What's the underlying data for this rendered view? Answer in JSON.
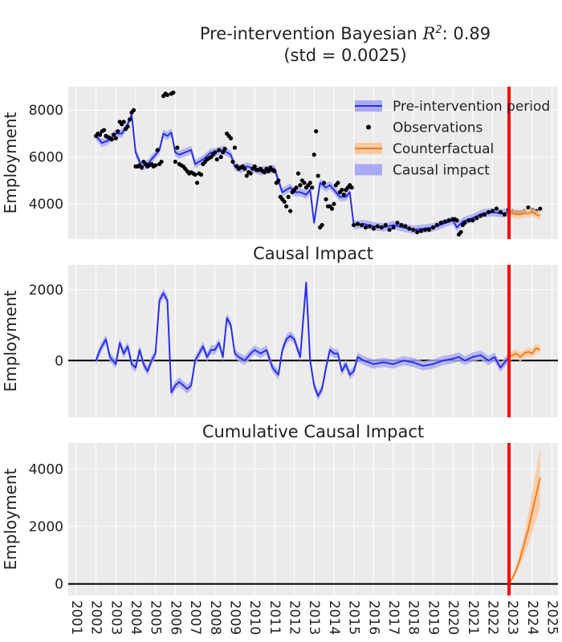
{
  "figure": {
    "title_line1_prefix": "Pre-intervention Bayesian ",
    "title_r2_symbol": "R",
    "title_r2_power": "2",
    "title_line1_suffix": ": 0.89",
    "title_line2": "(std = 0.0025)"
  },
  "colors": {
    "panel_bg": "#ebebeb",
    "grid": "#ffffff",
    "pre_line": "#2a2eec",
    "pre_band": "#a9aaf3",
    "counterfactual": "#fa7c17",
    "counterfactual_band": "#f8c9a3",
    "observations": "#000000",
    "intervention_line": "#ff0000",
    "zero_line": "#000000"
  },
  "chart_data": [
    {
      "type": "line",
      "title": "",
      "ylabel": "Employment",
      "xlim": [
        2000.6,
        2025.3
      ],
      "ylim": [
        2500,
        9000
      ],
      "yticks": [
        4000,
        6000,
        8000
      ],
      "grid": true,
      "intervention_x": 2022.83,
      "legend": {
        "position": "top-right",
        "entries": [
          "Pre-intervention period",
          "Observations",
          "Counterfactual",
          "Causal impact"
        ]
      },
      "series": [
        {
          "name": "Pre-intervention period",
          "x": [
            2002.0,
            2002.3,
            2002.6,
            2003.0,
            2003.3,
            2003.6,
            2003.8,
            2004.0,
            2004.3,
            2004.6,
            2005.0,
            2005.2,
            2005.4,
            2005.6,
            2005.8,
            2006.0,
            2006.2,
            2006.5,
            2006.8,
            2007.0,
            2007.4,
            2007.8,
            2008.0,
            2008.4,
            2008.8,
            2009.0,
            2009.3,
            2009.6,
            2010.0,
            2010.3,
            2010.6,
            2011.0,
            2011.4,
            2011.6,
            2011.8,
            2012.0,
            2012.3,
            2012.6,
            2012.8,
            2013.0,
            2013.3,
            2013.6,
            2013.8,
            2014.0,
            2014.3,
            2014.6,
            2014.8,
            2015.0,
            2015.5,
            2016.0,
            2016.5,
            2017.0,
            2017.5,
            2018.0,
            2018.5,
            2019.0,
            2019.5,
            2020.0,
            2020.2,
            2020.5,
            2021.0,
            2021.5,
            2022.0,
            2022.5,
            2022.83
          ],
          "y": [
            6900,
            6600,
            6700,
            7000,
            7000,
            7400,
            7800,
            6200,
            5600,
            5700,
            6100,
            6300,
            7000,
            6900,
            7050,
            6200,
            6100,
            6200,
            6300,
            5700,
            5900,
            6200,
            6200,
            6300,
            6100,
            5600,
            5500,
            5600,
            5500,
            5400,
            5450,
            5500,
            4500,
            4600,
            4700,
            4500,
            4500,
            4400,
            4600,
            3200,
            4900,
            4700,
            4800,
            4600,
            4300,
            4300,
            4500,
            3100,
            3150,
            3050,
            3000,
            3100,
            3000,
            2900,
            2950,
            3000,
            3150,
            3300,
            3000,
            3250,
            3400,
            3600,
            3650,
            3600,
            3650
          ]
        },
        {
          "name": "Observations",
          "x": [
            2002.0,
            2002.1,
            2002.2,
            2002.3,
            2002.4,
            2002.5,
            2002.6,
            2002.7,
            2002.8,
            2002.9,
            2003.0,
            2003.1,
            2003.2,
            2003.3,
            2003.4,
            2003.5,
            2003.6,
            2003.7,
            2003.8,
            2003.9,
            2004.0,
            2004.1,
            2004.2,
            2004.3,
            2004.4,
            2004.5,
            2004.6,
            2004.7,
            2004.8,
            2004.9,
            2005.0,
            2005.1,
            2005.2,
            2005.3,
            2005.4,
            2005.5,
            2005.6,
            2005.8,
            2005.9,
            2006.0,
            2006.1,
            2006.2,
            2006.3,
            2006.4,
            2006.5,
            2006.6,
            2006.7,
            2006.8,
            2006.9,
            2007.0,
            2007.1,
            2007.2,
            2007.3,
            2007.4,
            2007.5,
            2007.6,
            2007.7,
            2007.8,
            2007.9,
            2008.0,
            2008.1,
            2008.2,
            2008.3,
            2008.4,
            2008.5,
            2008.6,
            2008.7,
            2008.8,
            2008.9,
            2009.0,
            2009.1,
            2009.2,
            2009.3,
            2009.4,
            2009.5,
            2009.6,
            2009.7,
            2009.8,
            2009.9,
            2010.0,
            2010.1,
            2010.2,
            2010.3,
            2010.4,
            2010.5,
            2010.6,
            2010.7,
            2010.8,
            2010.9,
            2011.0,
            2011.1,
            2011.2,
            2011.3,
            2011.4,
            2011.5,
            2011.6,
            2011.7,
            2011.8,
            2011.9,
            2012.0,
            2012.1,
            2012.2,
            2012.3,
            2012.4,
            2012.5,
            2012.6,
            2012.7,
            2012.8,
            2012.9,
            2013.0,
            2013.1,
            2013.2,
            2013.3,
            2013.4,
            2013.5,
            2013.6,
            2013.7,
            2013.8,
            2013.9,
            2014.0,
            2014.1,
            2014.2,
            2014.3,
            2014.4,
            2014.5,
            2014.6,
            2014.7,
            2014.8,
            2014.9,
            2015.0,
            2015.2,
            2015.4,
            2015.6,
            2015.8,
            2016.0,
            2016.2,
            2016.4,
            2016.6,
            2016.8,
            2017.0,
            2017.2,
            2017.4,
            2017.6,
            2017.8,
            2018.0,
            2018.2,
            2018.4,
            2018.6,
            2018.8,
            2019.0,
            2019.2,
            2019.4,
            2019.6,
            2019.8,
            2020.0,
            2020.1,
            2020.2,
            2020.3,
            2020.4,
            2020.5,
            2020.6,
            2020.8,
            2021.0,
            2021.2,
            2021.4,
            2021.6,
            2021.8,
            2022.0,
            2022.2,
            2022.4,
            2022.6,
            2022.8,
            2023.0,
            2023.2,
            2023.4,
            2023.6,
            2023.8,
            2024.0,
            2024.2,
            2024.4
          ],
          "y": [
            6900,
            7000,
            6950,
            7100,
            7150,
            6900,
            6850,
            6800,
            6750,
            6950,
            6800,
            7100,
            7500,
            7400,
            7500,
            7200,
            7300,
            7600,
            7900,
            8000,
            5600,
            5600,
            5650,
            5550,
            5800,
            5700,
            5600,
            5650,
            5700,
            5600,
            5650,
            6300,
            5700,
            5800,
            8600,
            8700,
            8650,
            8700,
            8750,
            5800,
            6400,
            5700,
            5650,
            5600,
            5500,
            5400,
            5300,
            5350,
            5300,
            5250,
            4900,
            5300,
            5250,
            5700,
            5800,
            5900,
            5950,
            6000,
            6100,
            6200,
            5900,
            6300,
            6000,
            6200,
            6350,
            7000,
            6900,
            6800,
            5800,
            6400,
            5600,
            5500,
            5550,
            5600,
            5500,
            5200,
            5350,
            5300,
            5500,
            5600,
            5450,
            5450,
            5500,
            5400,
            5350,
            5500,
            5400,
            5550,
            5450,
            5400,
            4900,
            5000,
            4300,
            4200,
            4100,
            3900,
            4300,
            3700,
            4500,
            4600,
            4700,
            5300,
            4800,
            5000,
            4900,
            4700,
            4800,
            4900,
            4700,
            6100,
            7100,
            5200,
            3000,
            3100,
            4900,
            4200,
            3900,
            3900,
            3800,
            4000,
            4800,
            4900,
            4500,
            4600,
            4400,
            4600,
            4700,
            4800,
            4700,
            3100,
            3150,
            3100,
            3000,
            3050,
            2950,
            3050,
            3000,
            3100,
            2900,
            3000,
            3200,
            3100,
            3050,
            2950,
            2900,
            2800,
            2850,
            2900,
            2900,
            3000,
            3100,
            3200,
            3250,
            3300,
            3350,
            3350,
            3300,
            2700,
            2800,
            3100,
            3200,
            3300,
            3300,
            3400,
            3500,
            3550,
            3650,
            3700,
            3800,
            3650,
            3550,
            3750,
            3700,
            3650,
            3650,
            3700,
            3850,
            3750,
            3700,
            3800
          ]
        },
        {
          "name": "Counterfactual",
          "x": [
            2022.83,
            2023.0,
            2023.2,
            2023.4,
            2023.6,
            2023.8,
            2024.0,
            2024.2,
            2024.4
          ],
          "y": [
            3650,
            3600,
            3550,
            3550,
            3600,
            3600,
            3650,
            3550,
            3500
          ]
        }
      ]
    },
    {
      "type": "line",
      "title": "Causal Impact",
      "ylabel": "Employment",
      "xlim": [
        2000.6,
        2025.3
      ],
      "ylim": [
        -1600,
        2700
      ],
      "yticks": [
        0,
        2000
      ],
      "grid": true,
      "intervention_x": 2022.83,
      "series": [
        {
          "name": "Causal impact",
          "x": [
            2002.0,
            2002.2,
            2002.5,
            2002.7,
            2003.0,
            2003.2,
            2003.4,
            2003.6,
            2003.8,
            2004.0,
            2004.2,
            2004.4,
            2004.6,
            2004.8,
            2005.0,
            2005.2,
            2005.4,
            2005.6,
            2005.8,
            2006.0,
            2006.2,
            2006.4,
            2006.6,
            2006.8,
            2007.0,
            2007.2,
            2007.4,
            2007.6,
            2007.8,
            2008.0,
            2008.2,
            2008.4,
            2008.6,
            2008.8,
            2009.0,
            2009.2,
            2009.5,
            2009.8,
            2010.0,
            2010.3,
            2010.6,
            2010.9,
            2011.2,
            2011.4,
            2011.6,
            2011.8,
            2012.0,
            2012.3,
            2012.6,
            2012.8,
            2013.0,
            2013.2,
            2013.4,
            2013.6,
            2013.8,
            2014.0,
            2014.2,
            2014.4,
            2014.6,
            2014.8,
            2015.0,
            2015.2,
            2015.5,
            2016.0,
            2016.5,
            2017.0,
            2017.5,
            2018.0,
            2018.5,
            2019.0,
            2019.5,
            2020.0,
            2020.3,
            2020.6,
            2021.0,
            2021.4,
            2021.8,
            2022.1,
            2022.4,
            2022.83
          ],
          "y": [
            0,
            300,
            600,
            100,
            -100,
            500,
            200,
            400,
            -100,
            -200,
            300,
            -100,
            -300,
            0,
            200,
            1700,
            1900,
            1700,
            -900,
            -700,
            -600,
            -700,
            -800,
            -700,
            0,
            200,
            400,
            100,
            300,
            300,
            500,
            100,
            1200,
            1000,
            200,
            100,
            0,
            200,
            300,
            200,
            300,
            -200,
            -400,
            300,
            600,
            700,
            600,
            100,
            2200,
            0,
            -700,
            -1000,
            -800,
            -200,
            300,
            200,
            200,
            -300,
            -100,
            -400,
            -300,
            100,
            0,
            -100,
            -50,
            -100,
            0,
            -50,
            -150,
            -100,
            0,
            50,
            100,
            0,
            100,
            150,
            0,
            100,
            -200,
            100
          ]
        },
        {
          "name": "Counterfactual",
          "x": [
            2022.83,
            2023.0,
            2023.2,
            2023.4,
            2023.6,
            2023.8,
            2024.0,
            2024.2,
            2024.4
          ],
          "y": [
            100,
            150,
            200,
            100,
            200,
            250,
            200,
            350,
            300
          ]
        }
      ]
    },
    {
      "type": "line",
      "title": "Cumulative Causal Impact",
      "ylabel": "Employment",
      "xlim": [
        2000.6,
        2025.3
      ],
      "ylim": [
        -400,
        4900
      ],
      "yticks": [
        0,
        2000,
        4000
      ],
      "xticks": [
        2001,
        2002,
        2003,
        2004,
        2005,
        2006,
        2007,
        2008,
        2009,
        2010,
        2011,
        2012,
        2013,
        2014,
        2015,
        2016,
        2017,
        2018,
        2019,
        2020,
        2021,
        2022,
        2023,
        2024,
        2025
      ],
      "grid": true,
      "intervention_x": 2022.83,
      "series": [
        {
          "name": "Counterfactual",
          "x": [
            2022.83,
            2023.0,
            2023.2,
            2023.4,
            2023.6,
            2023.8,
            2024.0,
            2024.2,
            2024.4
          ],
          "y": [
            0,
            200,
            500,
            900,
            1400,
            1900,
            2500,
            3100,
            3700
          ]
        }
      ]
    }
  ]
}
